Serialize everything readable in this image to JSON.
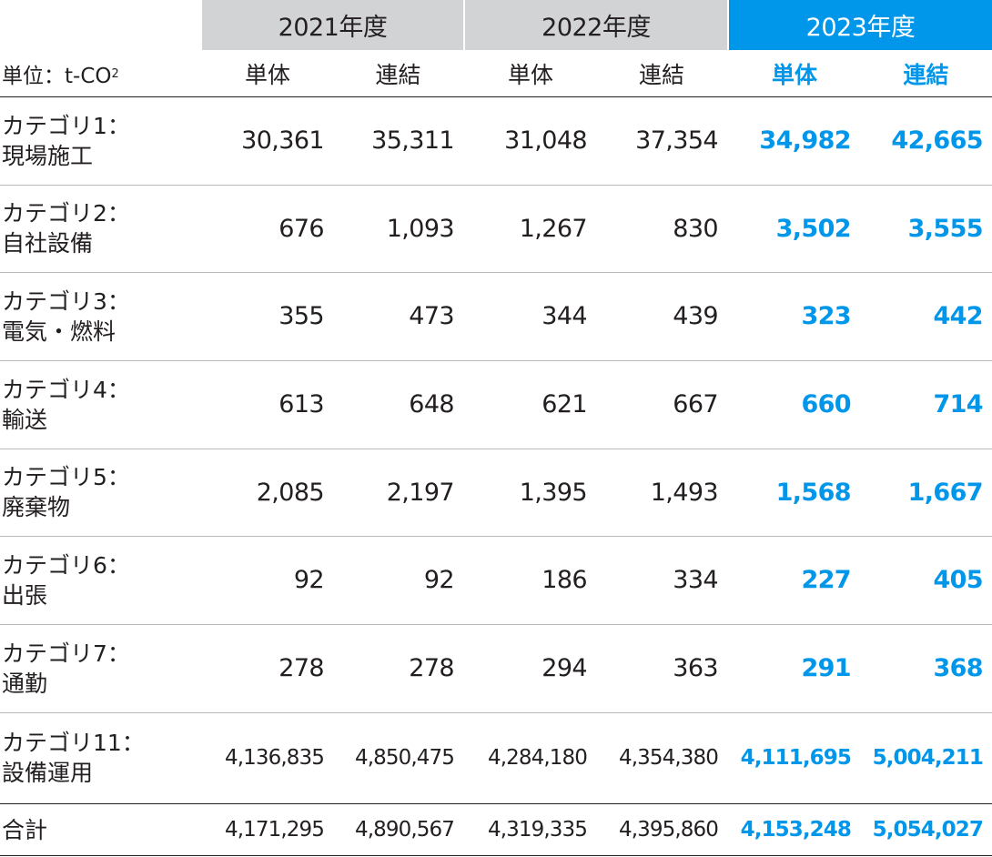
{
  "header": {
    "years": [
      {
        "label": "2021年度"
      },
      {
        "label": "2022年度"
      },
      {
        "label": "2023年度"
      }
    ],
    "unit_label": "単位：t-CO",
    "unit_sub": "2",
    "col_single": "単体",
    "col_consolidated": "連結"
  },
  "rows": [
    {
      "line1": "カテゴリ1：",
      "line2": "現場施工",
      "v": [
        "30,361",
        "35,311",
        "31,048",
        "37,354",
        "34,982",
        "42,665"
      ]
    },
    {
      "line1": "カテゴリ2：",
      "line2": "自社設備",
      "v": [
        "676",
        "1,093",
        "1,267",
        "830",
        "3,502",
        "3,555"
      ]
    },
    {
      "line1": "カテゴリ3：",
      "line2": "電気・燃料",
      "v": [
        "355",
        "473",
        "344",
        "439",
        "323",
        "442"
      ]
    },
    {
      "line1": "カテゴリ4：",
      "line2": "輸送",
      "v": [
        "613",
        "648",
        "621",
        "667",
        "660",
        "714"
      ]
    },
    {
      "line1": "カテゴリ5：",
      "line2": "廃棄物",
      "v": [
        "2,085",
        "2,197",
        "1,395",
        "1,493",
        "1,568",
        "1,667"
      ]
    },
    {
      "line1": "カテゴリ6：",
      "line2": "出張",
      "v": [
        "92",
        "92",
        "186",
        "334",
        "227",
        "405"
      ]
    },
    {
      "line1": "カテゴリ7：",
      "line2": "通勤",
      "v": [
        "278",
        "278",
        "294",
        "363",
        "291",
        "368"
      ]
    },
    {
      "line1": "カテゴリ11：",
      "line2": "設備運用",
      "v": [
        "4,136,835",
        "4,850,475",
        "4,284,180",
        "4,354,380",
        "4,111,695",
        "5,004,211"
      ]
    }
  ],
  "total": {
    "label": "合計",
    "v": [
      "4,171,295",
      "4,890,567",
      "4,319,335",
      "4,395,860",
      "4,153,248",
      "5,054,027"
    ]
  },
  "colors": {
    "highlight": "#0096ea",
    "header_gray": "#d2d3d5"
  }
}
